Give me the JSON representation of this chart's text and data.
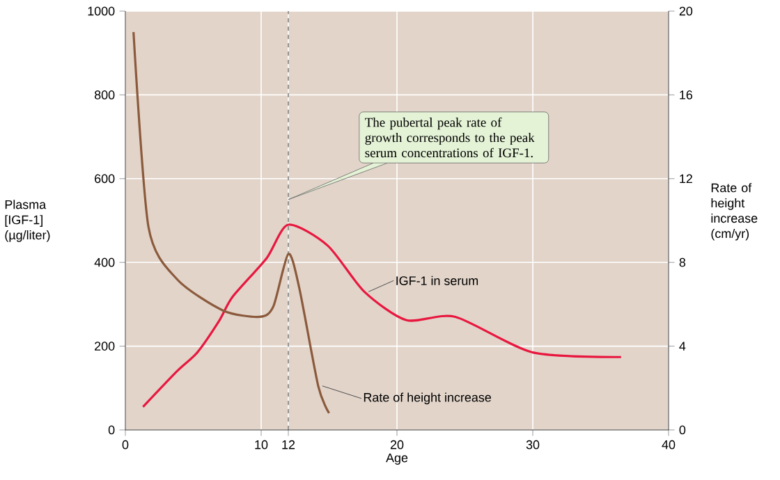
{
  "chart_data": {
    "type": "line",
    "xlabel": "Age",
    "ylabel": "Plasma [IGF-1] (µg/liter)",
    "y2label": "Rate of height increase (cm/yr)",
    "xlim": [
      0,
      40
    ],
    "xticks": [
      0,
      10,
      12,
      20,
      30,
      40
    ],
    "ylim": [
      0,
      1000
    ],
    "yticks": [
      0,
      200,
      400,
      600,
      800,
      1000
    ],
    "y2lim": [
      0,
      20
    ],
    "y2ticks": [
      0,
      4,
      8,
      12,
      16,
      20
    ],
    "grid": true,
    "series": [
      {
        "name": "IGF-1 in serum",
        "color": "#e8173f",
        "x": [
          1.3,
          3.8,
          5.3,
          6.9,
          7.9,
          10.4,
          12,
          14.9,
          17.6,
          20.7,
          24.3,
          30,
          36.5
        ],
        "values": [
          55,
          140,
          185,
          260,
          318,
          410,
          490,
          440,
          330,
          262,
          270,
          185,
          174
        ]
      },
      {
        "name": "Rate of height increase",
        "color": "#8b5a3c",
        "axis": "y2",
        "x": [
          0.6,
          1.7,
          3.8,
          7.2,
          9.9,
          10.9,
          12,
          12.8,
          14.2,
          15
        ],
        "values": [
          19,
          9.7,
          7.2,
          5.7,
          5.4,
          5.9,
          8.4,
          6.8,
          2.1,
          0.8
        ]
      }
    ],
    "ref_lines": [
      {
        "axis": "x",
        "value": 12,
        "color": "#333333",
        "line_style": "dashed"
      }
    ],
    "annotations": [
      "The pubertal peak rate of growth corresponds to the peak serum concentrations of IGF-1."
    ]
  }
}
